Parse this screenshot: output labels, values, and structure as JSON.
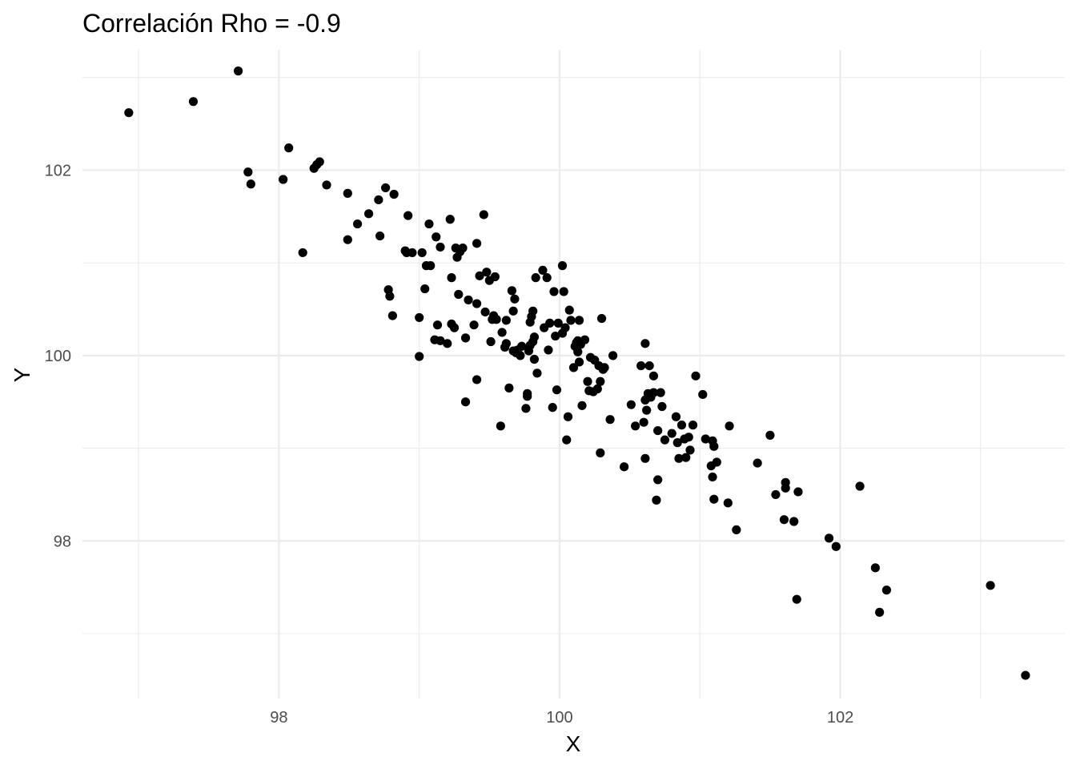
{
  "chart_data": {
    "type": "scatter",
    "title": "Correlación Rho = -0.9",
    "xlabel": "X",
    "ylabel": "Y",
    "xlim": [
      96.6,
      103.6
    ],
    "ylim": [
      96.3,
      103.3
    ],
    "x_major_ticks": [
      98,
      100,
      102
    ],
    "x_minor_ticks": [
      97,
      99,
      101,
      103
    ],
    "x_tick_labels": [
      "98",
      "100",
      "102"
    ],
    "y_major_ticks": [
      98,
      100,
      102
    ],
    "y_minor_ticks": [
      97,
      99,
      101,
      103
    ],
    "y_tick_labels": [
      "98",
      "100",
      "102"
    ],
    "grid": true,
    "point_color": "#000000",
    "points": [
      [
        96.93,
        102.62
      ],
      [
        97.39,
        102.74
      ],
      [
        97.71,
        103.07
      ],
      [
        97.78,
        101.98
      ],
      [
        97.8,
        101.85
      ],
      [
        98.03,
        101.9
      ],
      [
        98.07,
        102.24
      ],
      [
        98.17,
        101.11
      ],
      [
        98.25,
        102.02
      ],
      [
        98.27,
        102.06
      ],
      [
        98.29,
        102.09
      ],
      [
        98.34,
        101.84
      ],
      [
        98.49,
        101.75
      ],
      [
        98.49,
        101.25
      ],
      [
        98.56,
        101.42
      ],
      [
        98.64,
        101.53
      ],
      [
        98.71,
        101.68
      ],
      [
        98.72,
        101.29
      ],
      [
        98.76,
        101.81
      ],
      [
        98.78,
        100.71
      ],
      [
        98.79,
        100.64
      ],
      [
        98.81,
        100.43
      ],
      [
        98.82,
        101.74
      ],
      [
        98.9,
        101.13
      ],
      [
        98.91,
        101.11
      ],
      [
        98.92,
        101.51
      ],
      [
        98.95,
        101.11
      ],
      [
        99.0,
        100.41
      ],
      [
        99.0,
        99.99
      ],
      [
        99.02,
        101.11
      ],
      [
        99.04,
        100.72
      ],
      [
        99.05,
        100.97
      ],
      [
        99.07,
        101.42
      ],
      [
        99.08,
        100.97
      ],
      [
        99.11,
        100.17
      ],
      [
        99.12,
        101.28
      ],
      [
        99.13,
        100.33
      ],
      [
        99.15,
        101.17
      ],
      [
        99.15,
        100.16
      ],
      [
        99.2,
        100.13
      ],
      [
        99.22,
        101.47
      ],
      [
        99.23,
        100.34
      ],
      [
        99.23,
        100.84
      ],
      [
        99.25,
        100.3
      ],
      [
        99.26,
        101.16
      ],
      [
        99.27,
        101.06
      ],
      [
        99.28,
        100.66
      ],
      [
        99.29,
        101.12
      ],
      [
        99.31,
        101.16
      ],
      [
        99.33,
        100.19
      ],
      [
        99.33,
        99.5
      ],
      [
        99.35,
        100.6
      ],
      [
        99.39,
        100.33
      ],
      [
        99.41,
        101.21
      ],
      [
        99.41,
        100.56
      ],
      [
        99.41,
        99.74
      ],
      [
        99.43,
        100.86
      ],
      [
        99.46,
        101.52
      ],
      [
        99.47,
        100.47
      ],
      [
        99.48,
        100.9
      ],
      [
        99.5,
        100.81
      ],
      [
        99.51,
        100.15
      ],
      [
        99.52,
        100.39
      ],
      [
        99.53,
        100.43
      ],
      [
        99.54,
        100.85
      ],
      [
        99.55,
        100.39
      ],
      [
        99.58,
        99.24
      ],
      [
        99.59,
        100.25
      ],
      [
        99.61,
        100.09
      ],
      [
        99.62,
        100.13
      ],
      [
        99.62,
        100.38
      ],
      [
        99.64,
        99.65
      ],
      [
        99.66,
        100.7
      ],
      [
        99.67,
        100.05
      ],
      [
        99.67,
        100.48
      ],
      [
        99.68,
        100.61
      ],
      [
        99.69,
        100.03
      ],
      [
        99.7,
        100.06
      ],
      [
        99.72,
        100.0
      ],
      [
        99.73,
        100.1
      ],
      [
        99.76,
        99.43
      ],
      [
        99.77,
        99.59
      ],
      [
        99.77,
        99.56
      ],
      [
        99.78,
        100.05
      ],
      [
        99.79,
        100.11
      ],
      [
        99.79,
        100.36
      ],
      [
        99.8,
        100.42
      ],
      [
        99.81,
        100.15
      ],
      [
        99.81,
        100.48
      ],
      [
        99.82,
        99.96
      ],
      [
        99.82,
        100.2
      ],
      [
        99.83,
        100.84
      ],
      [
        99.84,
        99.81
      ],
      [
        99.88,
        100.92
      ],
      [
        99.89,
        100.3
      ],
      [
        99.91,
        100.84
      ],
      [
        99.92,
        100.06
      ],
      [
        99.93,
        100.35
      ],
      [
        99.95,
        99.44
      ],
      [
        99.96,
        100.69
      ],
      [
        99.97,
        100.21
      ],
      [
        99.98,
        99.63
      ],
      [
        99.99,
        100.35
      ],
      [
        100.02,
        100.97
      ],
      [
        100.02,
        100.24
      ],
      [
        100.03,
        100.69
      ],
      [
        100.04,
        100.3
      ],
      [
        100.05,
        99.09
      ],
      [
        100.06,
        99.34
      ],
      [
        100.07,
        100.49
      ],
      [
        100.08,
        100.38
      ],
      [
        100.1,
        99.87
      ],
      [
        100.11,
        100.1
      ],
      [
        100.12,
        100.14
      ],
      [
        100.13,
        100.16
      ],
      [
        100.13,
        100.04
      ],
      [
        100.14,
        99.93
      ],
      [
        100.14,
        100.38
      ],
      [
        100.15,
        100.12
      ],
      [
        100.16,
        99.46
      ],
      [
        100.18,
        100.17
      ],
      [
        100.2,
        99.72
      ],
      [
        100.21,
        99.62
      ],
      [
        100.22,
        99.98
      ],
      [
        100.24,
        99.61
      ],
      [
        100.25,
        99.95
      ],
      [
        100.27,
        99.64
      ],
      [
        100.28,
        99.89
      ],
      [
        100.29,
        99.72
      ],
      [
        100.29,
        98.95
      ],
      [
        100.3,
        100.4
      ],
      [
        100.31,
        99.85
      ],
      [
        100.32,
        99.87
      ],
      [
        100.36,
        99.31
      ],
      [
        100.38,
        100.0
      ],
      [
        100.46,
        98.8
      ],
      [
        100.51,
        99.47
      ],
      [
        100.54,
        99.24
      ],
      [
        100.58,
        99.89
      ],
      [
        100.6,
        99.28
      ],
      [
        100.61,
        99.52
      ],
      [
        100.61,
        100.13
      ],
      [
        100.61,
        98.89
      ],
      [
        100.62,
        99.41
      ],
      [
        100.63,
        99.59
      ],
      [
        100.64,
        99.89
      ],
      [
        100.65,
        99.55
      ],
      [
        100.67,
        99.78
      ],
      [
        100.67,
        99.6
      ],
      [
        100.69,
        98.44
      ],
      [
        100.7,
        98.66
      ],
      [
        100.7,
        99.19
      ],
      [
        100.72,
        99.6
      ],
      [
        100.73,
        99.45
      ],
      [
        100.75,
        99.09
      ],
      [
        100.8,
        99.16
      ],
      [
        100.83,
        99.34
      ],
      [
        100.84,
        99.06
      ],
      [
        100.85,
        98.89
      ],
      [
        100.87,
        99.25
      ],
      [
        100.89,
        99.1
      ],
      [
        100.9,
        98.9
      ],
      [
        100.92,
        99.12
      ],
      [
        100.93,
        98.98
      ],
      [
        100.95,
        99.25
      ],
      [
        100.97,
        99.78
      ],
      [
        101.02,
        99.58
      ],
      [
        101.04,
        99.1
      ],
      [
        101.08,
        98.81
      ],
      [
        101.09,
        99.08
      ],
      [
        101.09,
        98.69
      ],
      [
        101.1,
        99.02
      ],
      [
        101.1,
        98.45
      ],
      [
        101.12,
        98.85
      ],
      [
        101.2,
        98.41
      ],
      [
        101.21,
        99.24
      ],
      [
        101.26,
        98.12
      ],
      [
        101.41,
        98.84
      ],
      [
        101.5,
        99.14
      ],
      [
        101.54,
        98.5
      ],
      [
        101.6,
        98.23
      ],
      [
        101.61,
        98.57
      ],
      [
        101.61,
        98.63
      ],
      [
        101.67,
        98.21
      ],
      [
        101.69,
        97.37
      ],
      [
        101.7,
        98.53
      ],
      [
        101.92,
        98.03
      ],
      [
        101.97,
        97.94
      ],
      [
        102.14,
        98.59
      ],
      [
        102.25,
        97.71
      ],
      [
        102.28,
        97.23
      ],
      [
        102.33,
        97.47
      ],
      [
        103.07,
        97.52
      ],
      [
        103.32,
        96.55
      ]
    ]
  }
}
